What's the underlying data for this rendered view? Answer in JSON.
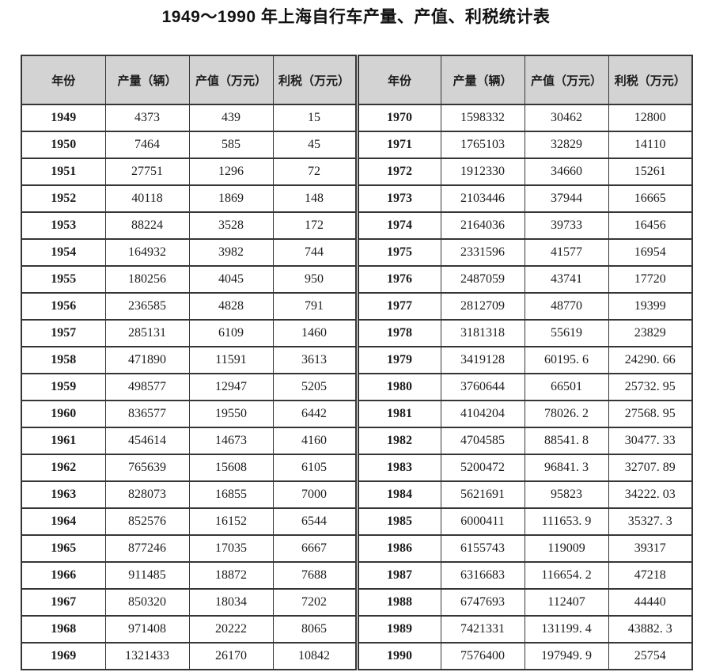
{
  "title": "1949～1990 年上海自行车产量、产值、利税统计表",
  "table": {
    "headers": [
      "年份",
      "产量（辆）",
      "产值（万元）",
      "利税（万元）",
      "年份",
      "产量（辆）",
      "产值（万元）",
      "利税（万元）"
    ],
    "rows": [
      [
        "1949",
        "4373",
        "439",
        "15",
        "1970",
        "1598332",
        "30462",
        "12800"
      ],
      [
        "1950",
        "7464",
        "585",
        "45",
        "1971",
        "1765103",
        "32829",
        "14110"
      ],
      [
        "1951",
        "27751",
        "1296",
        "72",
        "1972",
        "1912330",
        "34660",
        "15261"
      ],
      [
        "1952",
        "40118",
        "1869",
        "148",
        "1973",
        "2103446",
        "37944",
        "16665"
      ],
      [
        "1953",
        "88224",
        "3528",
        "172",
        "1974",
        "2164036",
        "39733",
        "16456"
      ],
      [
        "1954",
        "164932",
        "3982",
        "744",
        "1975",
        "2331596",
        "41577",
        "16954"
      ],
      [
        "1955",
        "180256",
        "4045",
        "950",
        "1976",
        "2487059",
        "43741",
        "17720"
      ],
      [
        "1956",
        "236585",
        "4828",
        "791",
        "1977",
        "2812709",
        "48770",
        "19399"
      ],
      [
        "1957",
        "285131",
        "6109",
        "1460",
        "1978",
        "3181318",
        "55619",
        "23829"
      ],
      [
        "1958",
        "471890",
        "11591",
        "3613",
        "1979",
        "3419128",
        "60195. 6",
        "24290. 66"
      ],
      [
        "1959",
        "498577",
        "12947",
        "5205",
        "1980",
        "3760644",
        "66501",
        "25732. 95"
      ],
      [
        "1960",
        "836577",
        "19550",
        "6442",
        "1981",
        "4104204",
        "78026. 2",
        "27568. 95"
      ],
      [
        "1961",
        "454614",
        "14673",
        "4160",
        "1982",
        "4704585",
        "88541. 8",
        "30477. 33"
      ],
      [
        "1962",
        "765639",
        "15608",
        "6105",
        "1983",
        "5200472",
        "96841. 3",
        "32707. 89"
      ],
      [
        "1963",
        "828073",
        "16855",
        "7000",
        "1984",
        "5621691",
        "95823",
        "34222. 03"
      ],
      [
        "1964",
        "852576",
        "16152",
        "6544",
        "1985",
        "6000411",
        "111653. 9",
        "35327. 3"
      ],
      [
        "1965",
        "877246",
        "17035",
        "6667",
        "1986",
        "6155743",
        "119009",
        "39317"
      ],
      [
        "1966",
        "911485",
        "18872",
        "7688",
        "1987",
        "6316683",
        "116654. 2",
        "47218"
      ],
      [
        "1967",
        "850320",
        "18034",
        "7202",
        "1988",
        "6747693",
        "112407",
        "44440"
      ],
      [
        "1968",
        "971408",
        "20222",
        "8065",
        "1989",
        "7421331",
        "131199. 4",
        "43882. 3"
      ],
      [
        "1969",
        "1321433",
        "26170",
        "10842",
        "1990",
        "7576400",
        "197949. 9",
        "25754"
      ]
    ]
  }
}
